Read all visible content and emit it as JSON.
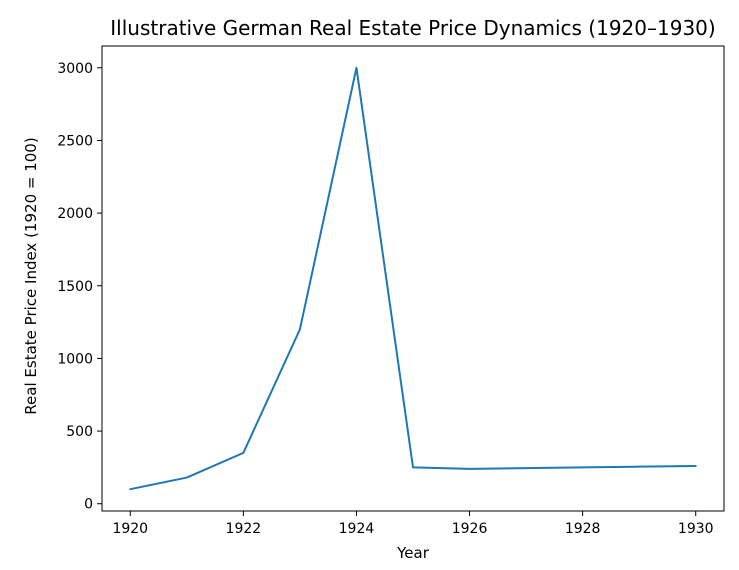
{
  "chart_data": {
    "type": "line",
    "title": "Illustrative German Real Estate Price Dynamics (1920–1930)",
    "xlabel": "Year",
    "ylabel": "Real Estate Price Index (1920 = 100)",
    "xlim": [
      1919.5,
      1930.5
    ],
    "ylim": [
      -50,
      3150
    ],
    "xticks": [
      1920,
      1922,
      1924,
      1926,
      1928,
      1930
    ],
    "yticks": [
      0,
      500,
      1000,
      1500,
      2000,
      2500,
      3000
    ],
    "grid": false,
    "series": [
      {
        "color": "#1f77b4",
        "x": [
          1920,
          1921,
          1922,
          1923,
          1924,
          1925,
          1926,
          1927,
          1928,
          1929,
          1930
        ],
        "y": [
          100,
          180,
          350,
          1200,
          3000,
          250,
          240,
          245,
          250,
          255,
          260
        ]
      }
    ]
  }
}
